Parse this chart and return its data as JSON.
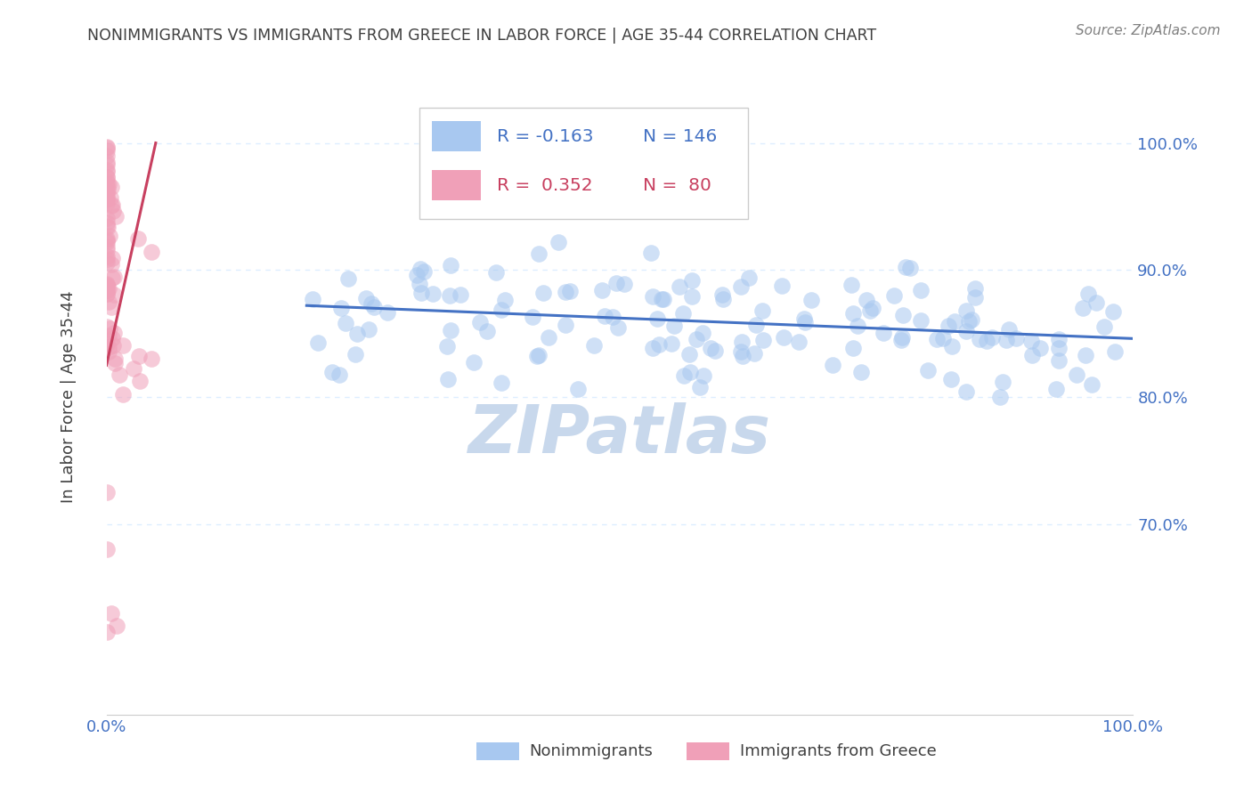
{
  "title": "NONIMMIGRANTS VS IMMIGRANTS FROM GREECE IN LABOR FORCE | AGE 35-44 CORRELATION CHART",
  "source": "Source: ZipAtlas.com",
  "ylabel": "In Labor Force | Age 35-44",
  "legend_nonimm": "Nonimmigrants",
  "legend_imm": "Immigrants from Greece",
  "R_nonimm": "-0.163",
  "N_nonimm": "146",
  "R_imm": "0.352",
  "N_imm": "80",
  "blue_scatter_color": "#A8C8F0",
  "pink_scatter_color": "#F0A0B8",
  "blue_line_color": "#4472C4",
  "pink_line_color": "#C84060",
  "title_color": "#404040",
  "axis_color": "#4472C4",
  "source_color": "#808080",
  "background_color": "#FFFFFF",
  "watermark_color": "#C8D8EC",
  "grid_color": "#DDEEFF",
  "xlim": [
    0.0,
    1.0
  ],
  "ylim": [
    0.55,
    1.05
  ],
  "yticks": [
    0.7,
    0.8,
    0.9,
    1.0
  ],
  "ytick_labels": [
    "70.0%",
    "80.0%",
    "90.0%",
    "100.0%"
  ],
  "xtick_labels": [
    "0.0%",
    "100.0%"
  ],
  "blue_trend": [
    0.195,
    0.872,
    1.0,
    0.846
  ],
  "pink_trend": [
    0.0,
    0.825,
    0.048,
    1.0
  ]
}
